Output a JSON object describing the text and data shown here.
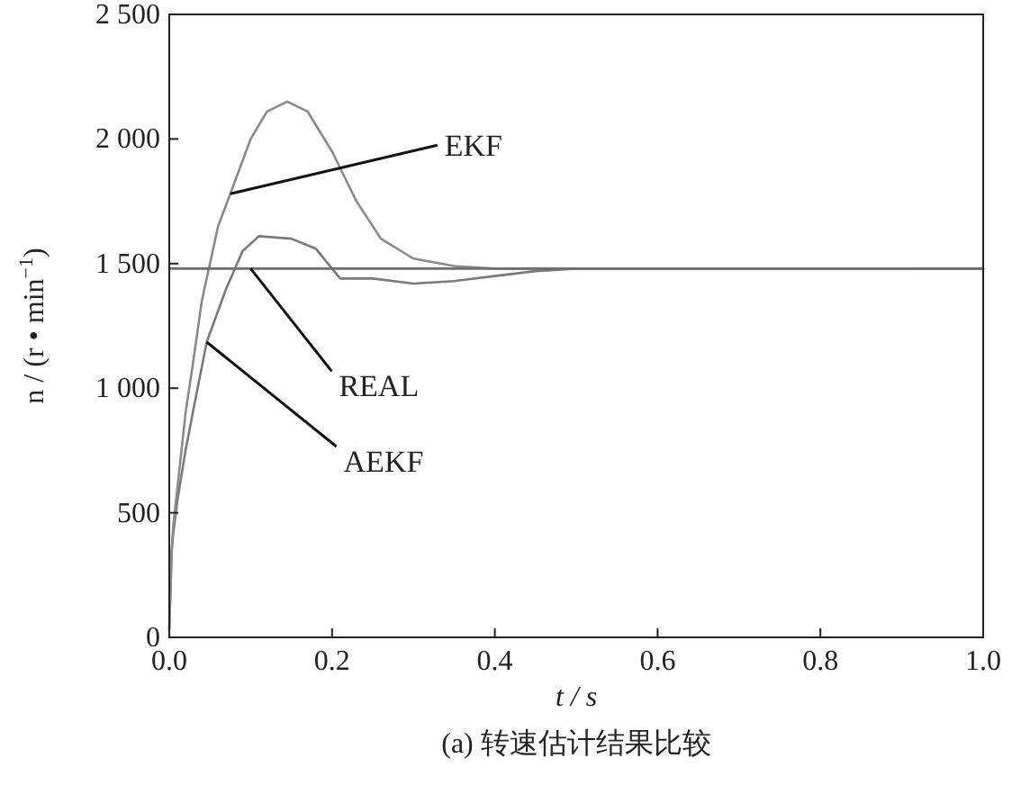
{
  "chart_data": {
    "type": "line",
    "xlabel": "t / s",
    "ylabel": "n / (r • min$^{−1}$)",
    "xlim": [
      0,
      1
    ],
    "ylim": [
      0,
      2500
    ],
    "xticks": [
      {
        "value": 0,
        "label": "0.0"
      },
      {
        "value": 0.2,
        "label": "0.2"
      },
      {
        "value": 0.4,
        "label": "0.4"
      },
      {
        "value": 0.6,
        "label": "0.6"
      },
      {
        "value": 0.8,
        "label": "0.8"
      },
      {
        "value": 1,
        "label": "1.0"
      }
    ],
    "yticks": [
      0,
      500,
      {
        "value": 1000,
        "label": "1 000"
      },
      {
        "value": 1500,
        "label": "1 500"
      },
      {
        "value": 2000,
        "label": "2 000"
      },
      {
        "value": 2500,
        "label": "2 500"
      }
    ],
    "grid": false,
    "marker": "none",
    "line_style": "solid",
    "series": [
      {
        "color": "#6e6e6e",
        "x": [
          0,
          1
        ],
        "values": [
          1480,
          1480
        ]
      },
      {
        "color": "#8a8a8a",
        "x": [
          0,
          0.003,
          0.005,
          0.01,
          0.02,
          0.03,
          0.04,
          0.06,
          0.075,
          0.1,
          0.12,
          0.145,
          0.17,
          0.2,
          0.23,
          0.26,
          0.3,
          0.35,
          0.4,
          0.5,
          0.7,
          1
        ],
        "values": [
          30,
          350,
          450,
          600,
          900,
          1120,
          1350,
          1650,
          1780,
          2000,
          2110,
          2150,
          2110,
          1950,
          1750,
          1600,
          1520,
          1490,
          1480,
          1480,
          1480,
          1480
        ]
      },
      {
        "color": "#7a7a7a",
        "x": [
          0,
          0.003,
          0.005,
          0.01,
          0.02,
          0.03,
          0.046,
          0.07,
          0.09,
          0.11,
          0.15,
          0.18,
          0.2,
          0.21,
          0.25,
          0.3,
          0.35,
          0.4,
          0.45,
          0.5,
          0.7,
          1
        ],
        "values": [
          30,
          350,
          420,
          550,
          750,
          920,
          1185,
          1400,
          1550,
          1610,
          1600,
          1560,
          1480,
          1440,
          1440,
          1420,
          1430,
          1450,
          1470,
          1480,
          1480,
          1480
        ]
      }
    ],
    "annotations": [
      {
        "text": "EKF",
        "x": 0.075,
        "y": 1780
      },
      {
        "text": "REAL",
        "x": 0.1,
        "y": 1480
      },
      {
        "text": "AEKF",
        "x": 0.046,
        "y": 1185
      },
      "(a) 转速估计结果比较"
    ]
  }
}
